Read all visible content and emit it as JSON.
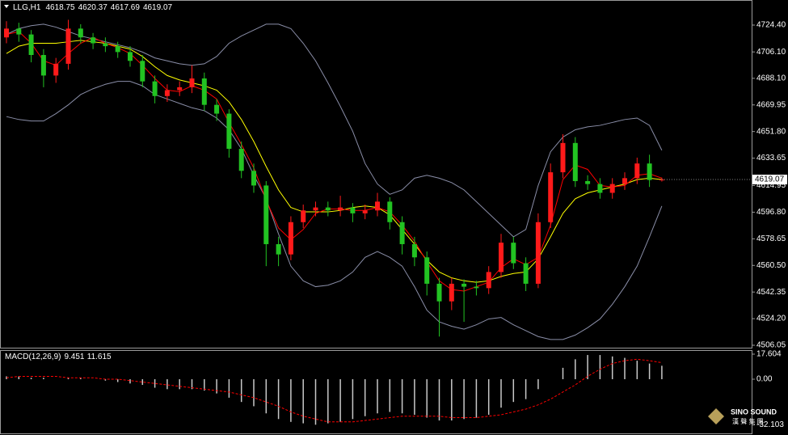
{
  "chart_data": [
    {
      "type": "candlestick",
      "symbol": "LLG,H1",
      "open": [
        4716,
        4722,
        4718,
        4704,
        4690,
        4698,
        4722,
        4716,
        4712,
        4710,
        4706,
        4700,
        4686,
        4676,
        4680,
        4682,
        4688,
        4670,
        4664,
        4640,
        4625,
        4615,
        4575,
        4568,
        4590,
        4598,
        4600,
        4598,
        4600,
        4596,
        4598,
        4604,
        4590,
        4575,
        4566,
        4548,
        4536,
        4548,
        4546,
        4545,
        4556,
        4576,
        4562,
        4548,
        4590,
        4624,
        4644,
        4618,
        4616,
        4610,
        4616,
        4620,
        4630,
        4618.75
      ],
      "high": [
        4727,
        4726,
        4721,
        4708,
        4702,
        4728,
        4725,
        4719,
        4716,
        4713,
        4710,
        4704,
        4690,
        4684,
        4686,
        4697,
        4692,
        4674,
        4667,
        4645,
        4630,
        4618,
        4580,
        4594,
        4602,
        4604,
        4604,
        4608,
        4603,
        4602,
        4610,
        4607,
        4594,
        4580,
        4570,
        4552,
        4552,
        4551,
        4550,
        4560,
        4582,
        4580,
        4566,
        4596,
        4630,
        4650,
        4648,
        4622,
        4620,
        4620,
        4624,
        4634,
        4636,
        4620.37
      ],
      "low": [
        4712,
        4713,
        4699,
        4682,
        4685,
        4694,
        4712,
        4708,
        4706,
        4702,
        4696,
        4682,
        4671,
        4672,
        4676,
        4678,
        4666,
        4659,
        4634,
        4620,
        4610,
        4560,
        4560,
        4564,
        4586,
        4594,
        4594,
        4594,
        4590,
        4592,
        4594,
        4585,
        4568,
        4560,
        4540,
        4512,
        4530,
        4522,
        4540,
        4541,
        4552,
        4558,
        4543,
        4545,
        4586,
        4620,
        4614,
        4612,
        4606,
        4606,
        4612,
        4616,
        4614,
        4617.69
      ],
      "close": [
        4722,
        4718,
        4704,
        4690,
        4698,
        4722,
        4716,
        4712,
        4710,
        4706,
        4700,
        4686,
        4676,
        4680,
        4682,
        4688,
        4670,
        4664,
        4640,
        4625,
        4615,
        4575,
        4568,
        4590,
        4598,
        4600,
        4598,
        4600,
        4596,
        4598,
        4604,
        4590,
        4575,
        4566,
        4548,
        4536,
        4548,
        4546,
        4545,
        4556,
        4576,
        4562,
        4548,
        4590,
        4624,
        4644,
        4618,
        4616,
        4610,
        4616,
        4620,
        4630,
        4618.75,
        4619.07
      ],
      "up_color": "#ff1a1a",
      "down_color": "#22c322",
      "series": [
        {
          "color": "#8a8ea8",
          "values": [
            4718,
            4722,
            4724,
            4725,
            4723,
            4720,
            4717,
            4715,
            4713,
            4711,
            4709,
            4706,
            4702,
            4700,
            4698,
            4697,
            4698,
            4703,
            4712,
            4717,
            4721,
            4725,
            4725,
            4722,
            4712,
            4700,
            4685,
            4669,
            4652,
            4630,
            4616,
            4609,
            4612,
            4620,
            4622,
            4620,
            4617,
            4612,
            4604,
            4596,
            4588,
            4580,
            4585,
            4615,
            4638,
            4648,
            4653,
            4655,
            4656,
            4658,
            4660,
            4661,
            4656,
            4639
          ]
        },
        {
          "color": "#8a8ea8",
          "values": [
            4662,
            4660,
            4659,
            4659,
            4664,
            4670,
            4677,
            4681,
            4684,
            4686,
            4686,
            4683,
            4677,
            4674,
            4671,
            4668,
            4666,
            4661,
            4653,
            4640,
            4622,
            4606,
            4582,
            4560,
            4550,
            4546,
            4547,
            4550,
            4556,
            4566,
            4570,
            4566,
            4560,
            4546,
            4530,
            4522,
            4519,
            4517,
            4520,
            4524,
            4525,
            4520,
            4516,
            4512,
            4510,
            4510,
            4513,
            4518,
            4524,
            4534,
            4546,
            4560,
            4580,
            4601
          ]
        },
        {
          "color": "#ffff00",
          "values": [
            4705,
            4710,
            4712,
            4712,
            4712,
            4713,
            4714,
            4713,
            4712,
            4710,
            4708,
            4703,
            4696,
            4690,
            4687,
            4685,
            4683,
            4680,
            4672,
            4660,
            4645,
            4628,
            4612,
            4600,
            4597,
            4597,
            4597,
            4598,
            4600,
            4601,
            4600,
            4595,
            4585,
            4575,
            4564,
            4556,
            4552,
            4550,
            4549,
            4550,
            4553,
            4555,
            4556,
            4565,
            4580,
            4596,
            4606,
            4610,
            4612,
            4614,
            4616,
            4619,
            4620,
            4619
          ]
        },
        {
          "color": "#ff0000",
          "values": [
            4718,
            4720,
            4712,
            4700,
            4697,
            4705,
            4712,
            4716,
            4712,
            4709,
            4705,
            4697,
            4688,
            4680,
            4679,
            4683,
            4680,
            4674,
            4658,
            4643,
            4627,
            4605,
            4586,
            4578,
            4585,
            4596,
            4599,
            4599,
            4598,
            4598,
            4600,
            4597,
            4588,
            4577,
            4563,
            4550,
            4544,
            4543,
            4546,
            4549,
            4559,
            4565,
            4561,
            4566,
            4588,
            4619,
            4629,
            4626,
            4615,
            4614,
            4615,
            4622,
            4623,
            4620
          ]
        }
      ],
      "ylim": [
        4504.4,
        4741.5
      ],
      "yticks": [
        {
          "value": 4724.4,
          "label": "4724.40"
        },
        {
          "value": 4706.1,
          "label": "4706.10"
        },
        {
          "value": 4688.1,
          "label": "4688.10"
        },
        4669.95,
        {
          "value": 4651.8,
          "label": "4651.80"
        },
        4633.65,
        4614.95,
        {
          "value": 4596.8,
          "label": "4596.80"
        },
        4578.65,
        {
          "value": 4560.5,
          "label": "4560.50"
        },
        4542.35,
        {
          "value": 4524.2,
          "label": "4524.20"
        },
        4506.05
      ]
    },
    {
      "type": "macd",
      "title": "MACD(12,26,9)",
      "series": [
        {
          "color": "#c8c8c8",
          "style": "histogram",
          "values": [
            2,
            2,
            1,
            1,
            0,
            1,
            1,
            0,
            -1,
            -2,
            -3,
            -4,
            -6,
            -7,
            -7,
            -7,
            -8,
            -10,
            -13,
            -16,
            -19,
            -24,
            -28,
            -30,
            -31,
            -32,
            -31,
            -30,
            -28,
            -26,
            -24,
            -23,
            -24,
            -25,
            -27,
            -29,
            -29,
            -28,
            -27,
            -25,
            -20,
            -16,
            -14,
            -7,
            0,
            8,
            14,
            17,
            17,
            16,
            15,
            13,
            11,
            9.451
          ]
        },
        {
          "color": "#ff0000",
          "style": "dashed",
          "values": [
            1,
            2,
            2,
            2,
            2,
            1,
            1,
            1,
            0,
            0,
            -1,
            -2,
            -3,
            -4,
            -5,
            -6,
            -7,
            -8,
            -9,
            -11,
            -13,
            -16,
            -19,
            -23,
            -26,
            -28,
            -30,
            -30,
            -30,
            -29,
            -28,
            -27,
            -26,
            -26,
            -26,
            -26,
            -27,
            -27,
            -27,
            -26,
            -25,
            -23,
            -21,
            -18,
            -14,
            -9,
            -4,
            2,
            7,
            11,
            13,
            14,
            13,
            11.615
          ]
        }
      ],
      "ylim": [
        -39.2,
        20.44
      ],
      "yticks": [
        17.604,
        {
          "value": 0,
          "label": "0.00"
        },
        -32.103
      ]
    }
  ],
  "logo": {
    "text": "SINO SOUND",
    "subtitle": "漢 聲 集 團"
  }
}
